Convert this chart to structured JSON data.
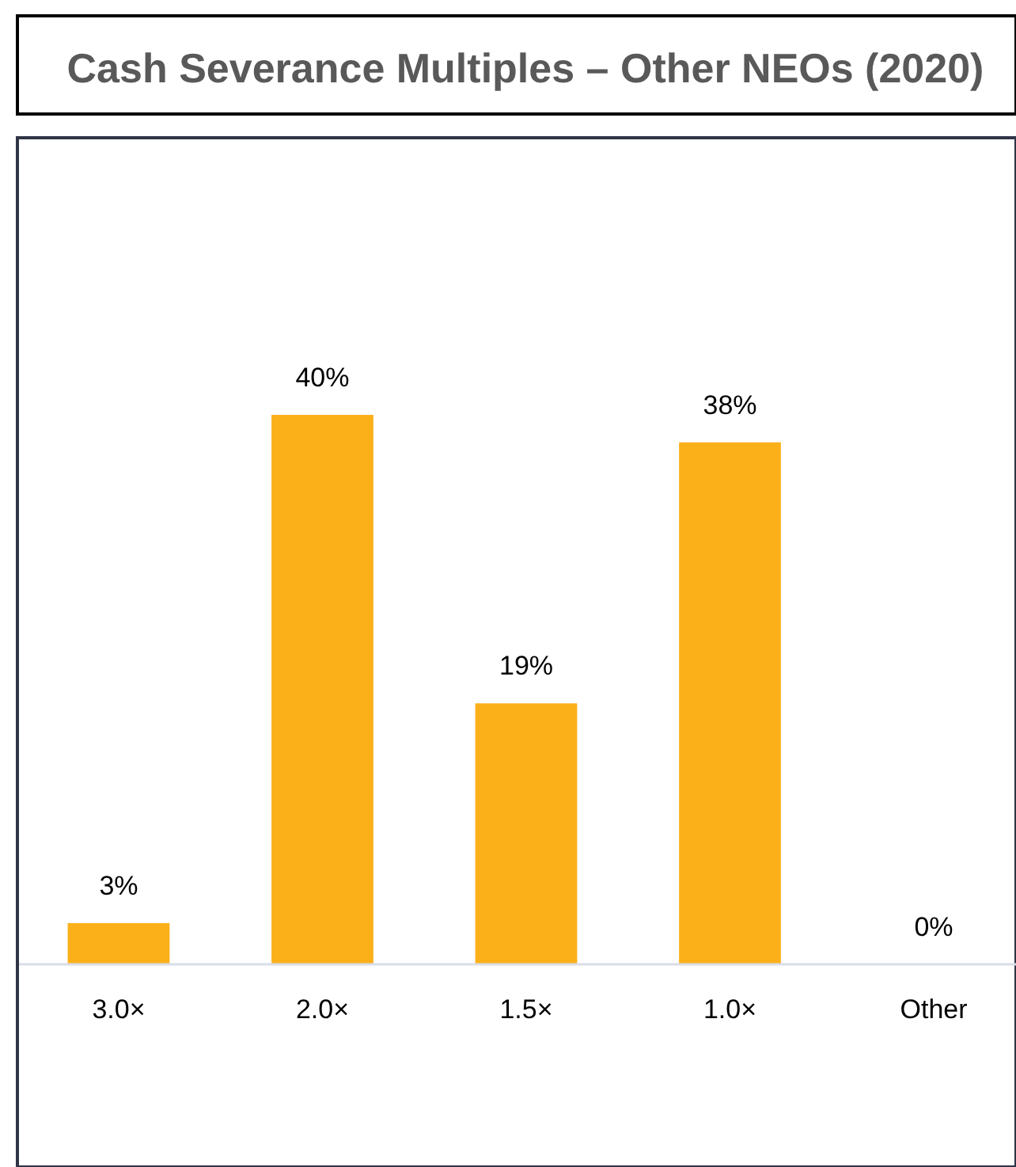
{
  "chart_data": {
    "type": "bar",
    "title": "Cash Severance Multiples – Other NEOs (2020)",
    "categories": [
      "3.0×",
      "2.0×",
      "1.5×",
      "1.0×",
      "Other"
    ],
    "values": [
      3,
      40,
      19,
      38,
      0
    ],
    "color": "#fbb01a",
    "value_labels": [
      "3%",
      "40%",
      "19%",
      "38%",
      "0%"
    ]
  }
}
